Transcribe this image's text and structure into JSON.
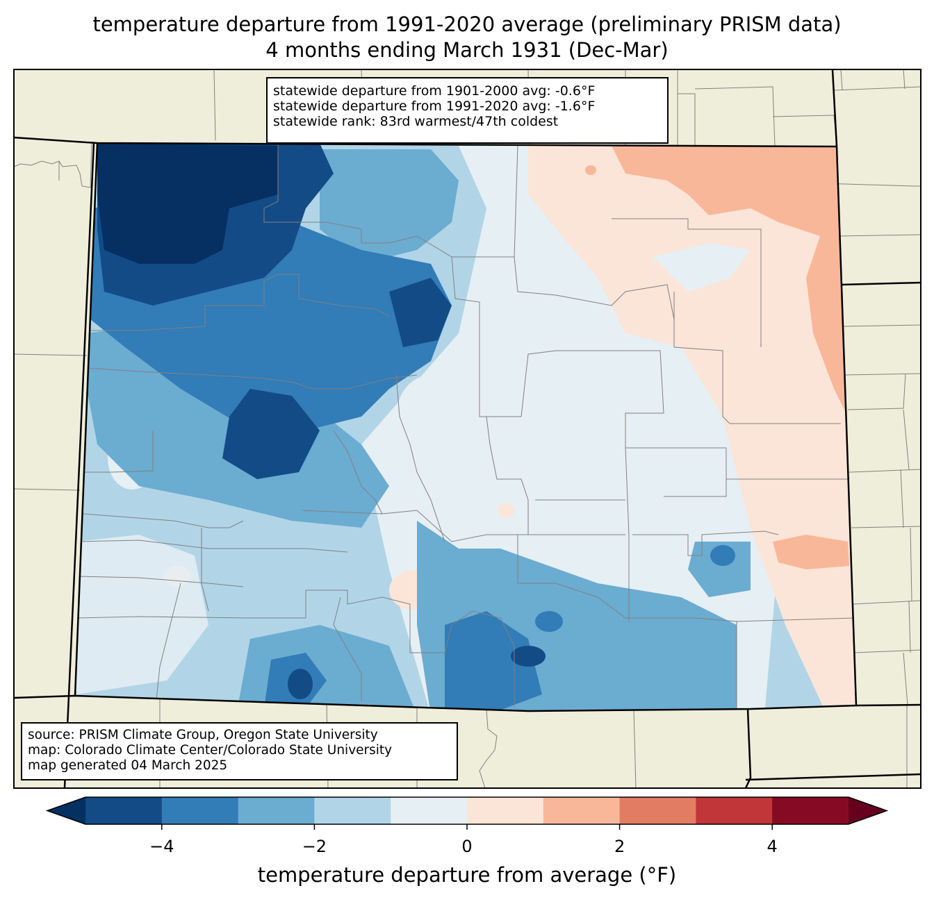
{
  "title_line1": "temperature departure from 1991-2020 average (preliminary PRISM data)",
  "title_line2": "4 months ending March 1931 (Dec-Mar)",
  "stats": {
    "line1": "statewide departure from 1901-2000 avg: -0.6°F",
    "line2": "statewide departure from 1991-2020 avg: -1.6°F",
    "line3": "statewide rank: 83rd warmest/47th coldest"
  },
  "source": {
    "line1": "source: PRISM Climate Group, Oregon State University",
    "line2": "map: Colorado Climate Center/Colorado State University",
    "line3": "map generated 04 March 2025"
  },
  "colorbar": {
    "label": "temperature departure from average (°F)",
    "min": -5,
    "max": 5,
    "ticks": [
      "−4",
      "−2",
      "0",
      "2",
      "4"
    ],
    "tick_values": [
      -4,
      -2,
      0,
      2,
      4
    ],
    "colors": [
      "#053061",
      "#134b87",
      "#327cb7",
      "#6bacd1",
      "#b1d5e7",
      "#e6eff4",
      "#fbe5d8",
      "#f9b799",
      "#e27d64",
      "#c13639",
      "#870a24",
      "#67001f"
    ]
  },
  "map_colors": {
    "land_outside": "#efeedb",
    "county_lines": "#808080",
    "state_lines": "#000000"
  }
}
